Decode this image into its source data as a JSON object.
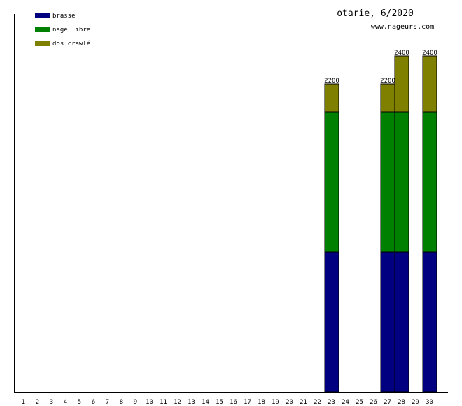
{
  "chart_data": {
    "type": "bar",
    "stacked": true,
    "title": "otarie, 6/2020",
    "subtitle": "www.nageurs.com",
    "categories": [
      "1",
      "2",
      "3",
      "4",
      "5",
      "6",
      "7",
      "8",
      "9",
      "10",
      "11",
      "12",
      "13",
      "14",
      "15",
      "16",
      "17",
      "18",
      "19",
      "20",
      "21",
      "22",
      "23",
      "24",
      "25",
      "26",
      "27",
      "28",
      "29",
      "30"
    ],
    "series": [
      {
        "name": "brasse",
        "color": "#000080",
        "values": [
          0,
          0,
          0,
          0,
          0,
          0,
          0,
          0,
          0,
          0,
          0,
          0,
          0,
          0,
          0,
          0,
          0,
          0,
          0,
          0,
          0,
          0,
          1000,
          0,
          0,
          0,
          1000,
          1000,
          0,
          1000
        ]
      },
      {
        "name": "nage libre",
        "color": "#008000",
        "values": [
          0,
          0,
          0,
          0,
          0,
          0,
          0,
          0,
          0,
          0,
          0,
          0,
          0,
          0,
          0,
          0,
          0,
          0,
          0,
          0,
          0,
          0,
          1000,
          0,
          0,
          0,
          1000,
          1000,
          0,
          1000
        ]
      },
      {
        "name": "dos crawlé",
        "color": "#808000",
        "values": [
          0,
          0,
          0,
          0,
          0,
          0,
          0,
          0,
          0,
          0,
          0,
          0,
          0,
          0,
          0,
          0,
          0,
          0,
          0,
          0,
          0,
          0,
          200,
          0,
          0,
          0,
          200,
          400,
          0,
          400
        ]
      }
    ],
    "totals": [
      null,
      null,
      null,
      null,
      null,
      null,
      null,
      null,
      null,
      null,
      null,
      null,
      null,
      null,
      null,
      null,
      null,
      null,
      null,
      null,
      null,
      null,
      "2200",
      null,
      null,
      null,
      "2200",
      "2400",
      null,
      "2400"
    ],
    "ylim": [
      0,
      2400
    ],
    "grid": false,
    "legend_position": "top-left"
  }
}
